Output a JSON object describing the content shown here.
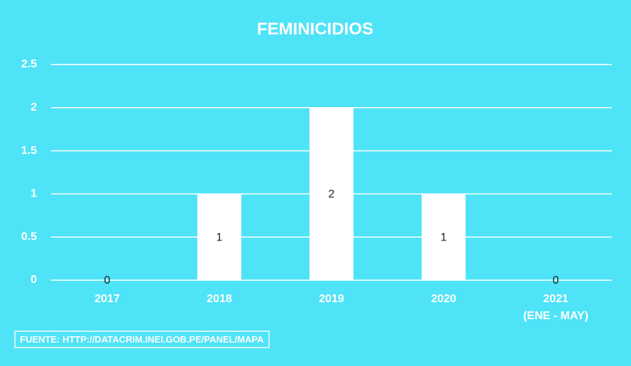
{
  "chart_data": {
    "type": "bar",
    "title": "FEMINICIDIOS",
    "categories": [
      "2017",
      "2018",
      "2019",
      "2020",
      "2021\n(ENE - MAY)"
    ],
    "values": [
      0,
      1,
      2,
      1,
      0
    ],
    "color": "#ffffff",
    "ylim": [
      0,
      2.5
    ],
    "yticks": [
      0,
      0.5,
      1,
      1.5,
      2,
      2.5
    ],
    "grid": true,
    "source": "FUENTE: HTTP://DATACRIM.INEI.GOB.PE/PANEL/MAPA"
  }
}
